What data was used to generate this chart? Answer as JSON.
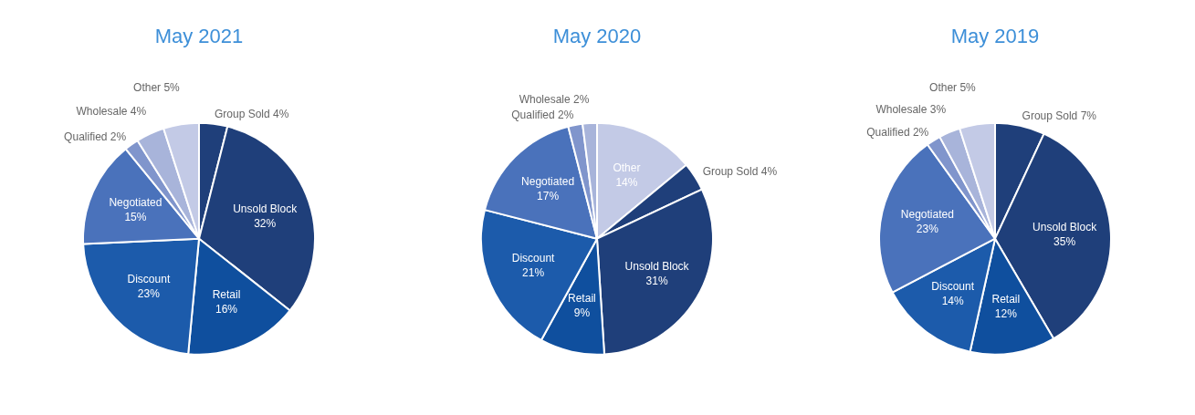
{
  "chart_data": [
    {
      "type": "pie",
      "title": "May 2021",
      "categories": [
        "Group Sold",
        "Unsold Block",
        "Retail",
        "Discount",
        "Negotiated",
        "Qualified",
        "Wholesale",
        "Other"
      ],
      "values": [
        4,
        32,
        16,
        23,
        15,
        2,
        4,
        5
      ],
      "value_labels": [
        "4%",
        "32%",
        "16%",
        "23%",
        "15%",
        "2%",
        "4%",
        "5%"
      ],
      "colors": [
        "#1f3f7a",
        "#1f3f7a",
        "#0f4f9e",
        "#1c5bab",
        "#4a72bb",
        "#8095cc",
        "#a8b4da",
        "#c3cae6"
      ]
    },
    {
      "type": "pie",
      "title": "May 2020",
      "categories": [
        "Other",
        "Group Sold",
        "Unsold Block",
        "Retail",
        "Discount",
        "Negotiated",
        "Qualified",
        "Wholesale"
      ],
      "values": [
        14,
        4,
        31,
        9,
        21,
        17,
        2,
        2
      ],
      "value_labels": [
        "14%",
        "4%",
        "31%",
        "9%",
        "21%",
        "17%",
        "2%",
        "2%"
      ],
      "colors": [
        "#c3cae6",
        "#1f3f7a",
        "#1f3f7a",
        "#0f4f9e",
        "#1c5bab",
        "#4a72bb",
        "#8095cc",
        "#a8b4da"
      ]
    },
    {
      "type": "pie",
      "title": "May 2019",
      "categories": [
        "Group Sold",
        "Unsold Block",
        "Retail",
        "Discount",
        "Negotiated",
        "Qualified",
        "Wholesale",
        "Other"
      ],
      "values": [
        7,
        35,
        12,
        14,
        23,
        2,
        3,
        5
      ],
      "value_labels": [
        "7%",
        "35%",
        "12%",
        "14%",
        "23%",
        "2%",
        "3%",
        "5%"
      ],
      "colors": [
        "#1f3f7a",
        "#1f3f7a",
        "#0f4f9e",
        "#1c5bab",
        "#4a72bb",
        "#8095cc",
        "#a8b4da",
        "#c3cae6"
      ]
    }
  ]
}
